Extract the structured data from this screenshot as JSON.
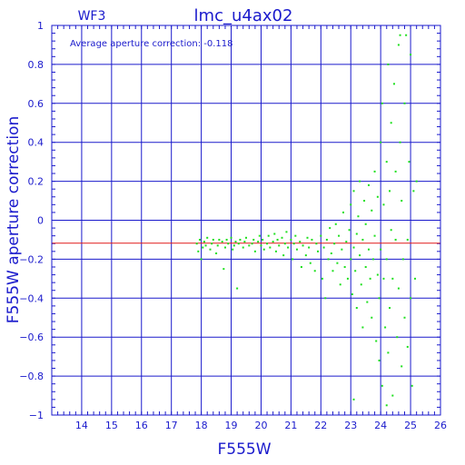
{
  "chart_data": {
    "type": "scatter",
    "title": "lmc_u4ax02",
    "corner_label": "WF3",
    "annotation": "Average aperture correction: -0.118",
    "xlabel": "F555W",
    "ylabel": "F555W aperture correction",
    "xlim": [
      13,
      26
    ],
    "ylim": [
      -1,
      1
    ],
    "x_ticks": [
      14,
      15,
      16,
      17,
      18,
      19,
      20,
      21,
      22,
      23,
      24,
      25,
      26
    ],
    "y_ticks": [
      -1,
      -0.8,
      -0.6,
      -0.4,
      -0.2,
      0,
      0.2,
      0.4,
      0.6,
      0.8,
      1
    ],
    "x_tick_labels": [
      "14",
      "15",
      "16",
      "17",
      "18",
      "19",
      "20",
      "21",
      "22",
      "23",
      "24",
      "25",
      "26"
    ],
    "y_tick_labels": [
      "−1",
      "−0.8",
      "−0.6",
      "−0.4",
      "−0.2",
      "0",
      "0.2",
      "0.4",
      "0.6",
      "0.8",
      "1"
    ],
    "grid": true,
    "reference_line": {
      "y": -0.118
    },
    "series": [
      {
        "points": [
          [
            17.85,
            -0.12
          ],
          [
            17.9,
            -0.16
          ],
          [
            17.95,
            -0.1
          ],
          [
            18.0,
            -0.2
          ],
          [
            18.05,
            -0.14
          ],
          [
            18.1,
            -0.11
          ],
          [
            18.15,
            -0.13
          ],
          [
            18.2,
            -0.09
          ],
          [
            18.3,
            -0.15
          ],
          [
            18.35,
            -0.12
          ],
          [
            18.4,
            -0.1
          ],
          [
            18.5,
            -0.17
          ],
          [
            18.55,
            -0.13
          ],
          [
            18.6,
            -0.1
          ],
          [
            18.7,
            -0.11
          ],
          [
            18.75,
            -0.25
          ],
          [
            18.8,
            -0.14
          ],
          [
            18.85,
            -0.1
          ],
          [
            18.9,
            -0.12
          ],
          [
            19.0,
            -0.09
          ],
          [
            19.05,
            -0.15
          ],
          [
            19.1,
            -0.13
          ],
          [
            19.15,
            -0.11
          ],
          [
            19.2,
            -0.35
          ],
          [
            19.25,
            -0.12
          ],
          [
            19.3,
            -0.1
          ],
          [
            19.4,
            -0.14
          ],
          [
            19.45,
            -0.11
          ],
          [
            19.5,
            -0.09
          ],
          [
            19.6,
            -0.13
          ],
          [
            19.7,
            -0.12
          ],
          [
            19.75,
            -0.1
          ],
          [
            19.8,
            -0.16
          ],
          [
            19.9,
            -0.11
          ],
          [
            19.95,
            -0.08
          ],
          [
            20.0,
            -0.13
          ],
          [
            20.05,
            -0.1
          ],
          [
            20.1,
            -0.15
          ],
          [
            20.2,
            -0.12
          ],
          [
            20.25,
            -0.08
          ],
          [
            20.3,
            -0.14
          ],
          [
            20.4,
            -0.11
          ],
          [
            20.45,
            -0.07
          ],
          [
            20.5,
            -0.16
          ],
          [
            20.55,
            -0.1
          ],
          [
            20.6,
            -0.13
          ],
          [
            20.7,
            -0.09
          ],
          [
            20.75,
            -0.18
          ],
          [
            20.8,
            -0.12
          ],
          [
            20.85,
            -0.06
          ],
          [
            20.9,
            -0.14
          ],
          [
            21.0,
            -0.1
          ],
          [
            21.05,
            -0.2
          ],
          [
            21.1,
            -0.12
          ],
          [
            21.15,
            -0.08
          ],
          [
            21.2,
            -0.15
          ],
          [
            21.3,
            -0.11
          ],
          [
            21.35,
            -0.24
          ],
          [
            21.4,
            -0.13
          ],
          [
            21.5,
            -0.18
          ],
          [
            21.55,
            -0.09
          ],
          [
            21.6,
            -0.14
          ],
          [
            21.65,
            -0.22
          ],
          [
            21.7,
            -0.1
          ],
          [
            21.8,
            -0.26
          ],
          [
            21.85,
            -0.12
          ],
          [
            21.9,
            -0.16
          ],
          [
            22.0,
            -0.08
          ],
          [
            22.05,
            -0.3
          ],
          [
            22.1,
            -0.14
          ],
          [
            22.15,
            -0.4
          ],
          [
            22.2,
            -0.1
          ],
          [
            22.25,
            -0.2
          ],
          [
            22.3,
            -0.04
          ],
          [
            22.35,
            -0.17
          ],
          [
            22.4,
            -0.26
          ],
          [
            22.45,
            -0.12
          ],
          [
            22.5,
            -0.02
          ],
          [
            22.55,
            -0.22
          ],
          [
            22.6,
            -0.08
          ],
          [
            22.65,
            -0.33
          ],
          [
            22.7,
            -0.15
          ],
          [
            22.75,
            0.04
          ],
          [
            22.8,
            -0.24
          ],
          [
            22.85,
            -0.11
          ],
          [
            22.9,
            -0.3
          ],
          [
            22.95,
            -0.05
          ],
          [
            23.0,
            -0.2
          ],
          [
            23.0,
            0.08
          ],
          [
            23.05,
            -0.38
          ],
          [
            23.1,
            -0.14
          ],
          [
            23.1,
            0.15
          ],
          [
            23.15,
            -0.26
          ],
          [
            23.2,
            -0.07
          ],
          [
            23.2,
            -0.45
          ],
          [
            23.25,
            0.02
          ],
          [
            23.3,
            -0.18
          ],
          [
            23.3,
            0.2
          ],
          [
            23.35,
            -0.33
          ],
          [
            23.4,
            -0.1
          ],
          [
            23.4,
            -0.55
          ],
          [
            23.45,
            0.1
          ],
          [
            23.5,
            -0.24
          ],
          [
            23.5,
            -0.02
          ],
          [
            23.55,
            -0.42
          ],
          [
            23.6,
            0.18
          ],
          [
            23.6,
            -0.15
          ],
          [
            23.65,
            -0.3
          ],
          [
            23.7,
            0.05
          ],
          [
            23.7,
            -0.5
          ],
          [
            23.75,
            -0.2
          ],
          [
            23.8,
            0.25
          ],
          [
            23.8,
            -0.08
          ],
          [
            23.85,
            -0.62
          ],
          [
            23.9,
            -0.28
          ],
          [
            23.9,
            0.12
          ],
          [
            23.95,
            -0.4
          ],
          [
            24.0,
            0.4
          ],
          [
            24.0,
            -0.15
          ],
          [
            23.95,
            -0.72
          ],
          [
            24.05,
            -0.85
          ],
          [
            24.05,
            0.6
          ],
          [
            24.1,
            -0.3
          ],
          [
            24.1,
            0.08
          ],
          [
            24.15,
            -0.55
          ],
          [
            24.2,
            0.3
          ],
          [
            24.2,
            -0.2
          ],
          [
            24.25,
            -0.68
          ],
          [
            24.25,
            0.8
          ],
          [
            24.3,
            0.15
          ],
          [
            24.3,
            -0.45
          ],
          [
            24.35,
            -0.05
          ],
          [
            24.35,
            0.5
          ],
          [
            24.4,
            -0.3
          ],
          [
            24.4,
            -0.9
          ],
          [
            24.45,
            0.7
          ],
          [
            24.5,
            -0.1
          ],
          [
            24.5,
            0.25
          ],
          [
            24.55,
            -0.6
          ],
          [
            24.6,
            0.9
          ],
          [
            24.6,
            -0.35
          ],
          [
            24.65,
            0.4
          ],
          [
            24.7,
            -0.75
          ],
          [
            24.7,
            0.1
          ],
          [
            24.75,
            -0.2
          ],
          [
            24.8,
            0.6
          ],
          [
            24.8,
            -0.5
          ],
          [
            24.85,
            0.95
          ],
          [
            24.9,
            -0.1
          ],
          [
            24.9,
            -0.65
          ],
          [
            24.95,
            0.3
          ],
          [
            25.0,
            -0.4
          ],
          [
            25.0,
            0.85
          ],
          [
            25.05,
            -0.85
          ],
          [
            25.1,
            0.15
          ],
          [
            25.15,
            -0.3
          ],
          [
            25.2,
            0.2
          ],
          [
            24.2,
            -0.95
          ],
          [
            23.1,
            -0.92
          ],
          [
            24.65,
            0.95
          ]
        ]
      }
    ]
  }
}
